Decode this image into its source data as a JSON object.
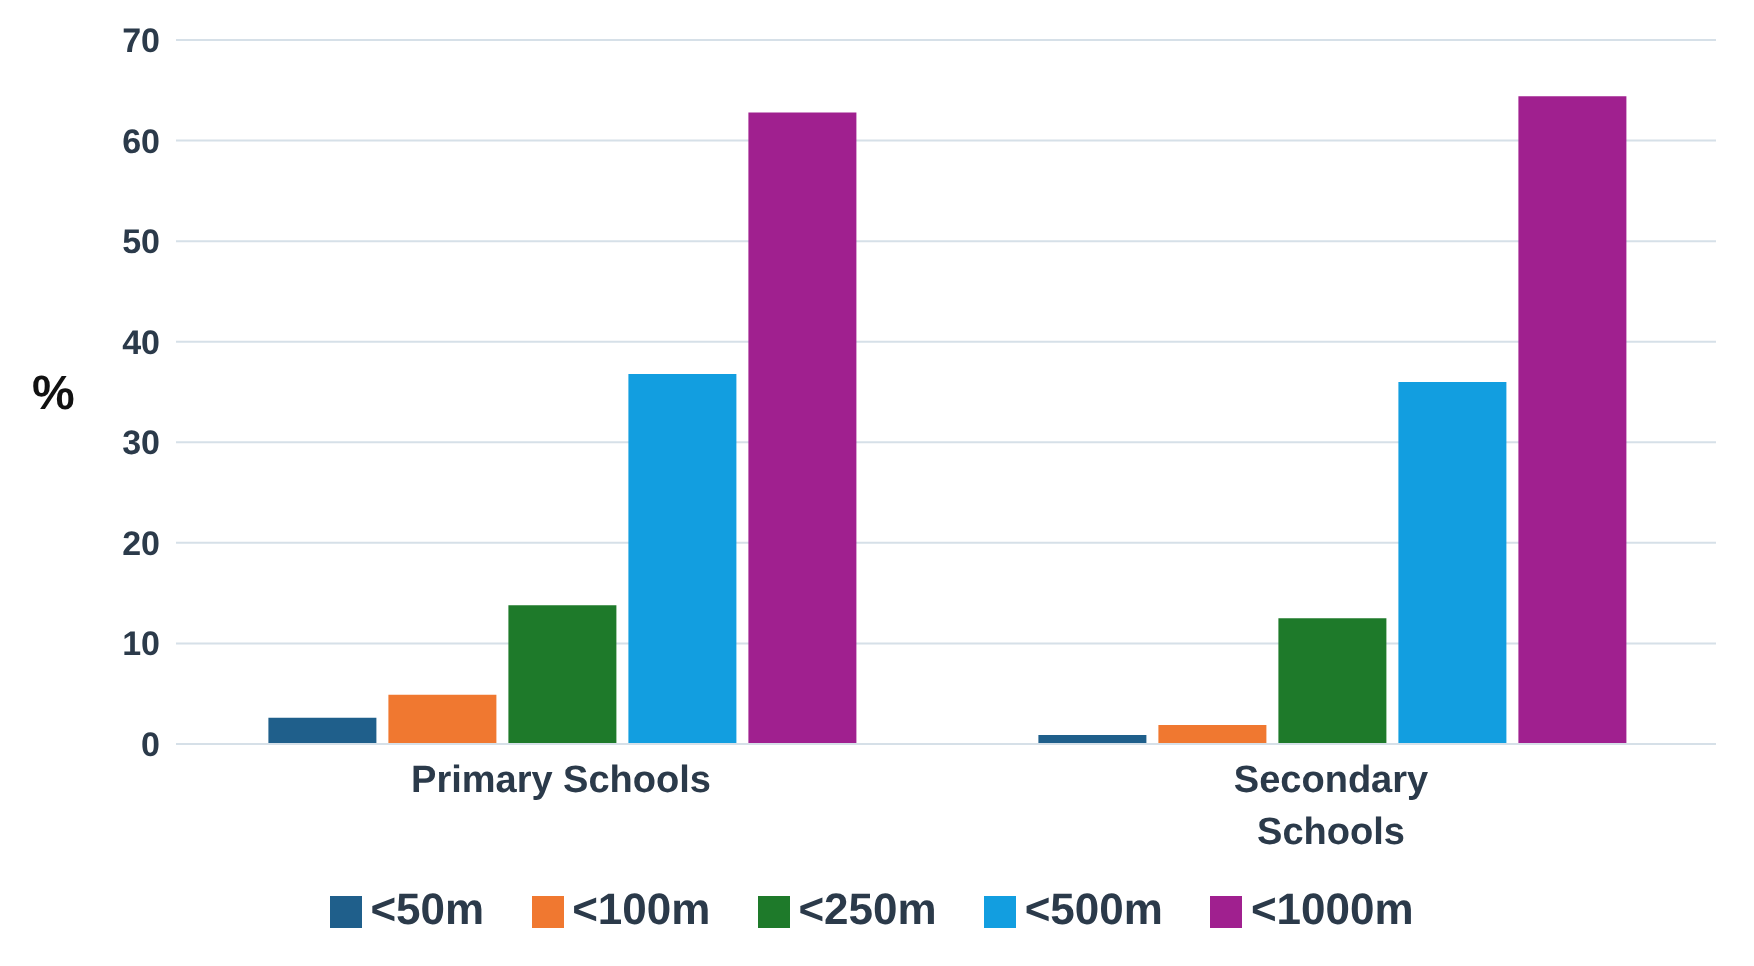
{
  "chart_data": {
    "type": "bar",
    "ylabel": "%",
    "categories": [
      "Primary Schools",
      "Secondary Schools"
    ],
    "series": [
      {
        "name": "<50m",
        "color": "#1f5f8b",
        "values": [
          2.6,
          0.9
        ]
      },
      {
        "name": "<100m",
        "color": "#f07830",
        "values": [
          4.9,
          1.9
        ]
      },
      {
        "name": "<250m",
        "color": "#1e7a2a",
        "values": [
          13.8,
          12.5
        ]
      },
      {
        "name": "<500m",
        "color": "#129ee0",
        "values": [
          36.8,
          36
        ]
      },
      {
        "name": "<1000m",
        "color": "#a0208f",
        "values": [
          62.8,
          64.4
        ]
      }
    ],
    "ylim": [
      0,
      70
    ],
    "yticks": [
      0,
      10,
      20,
      30,
      40,
      50,
      60,
      70
    ],
    "grid": "y",
    "legend": "bottom"
  }
}
